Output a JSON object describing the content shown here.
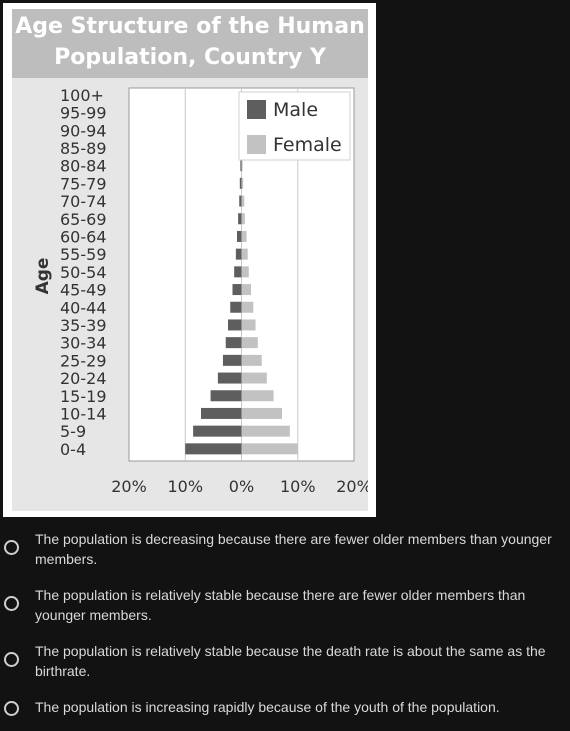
{
  "chart_data": {
    "type": "bar",
    "title": "Age Structure of the Human Population, Country Y",
    "title_lines": [
      "Age Structure of the Human",
      "Population, Country Y"
    ],
    "ylabel": "Age",
    "categories": [
      "100+",
      "95-99",
      "90-94",
      "85-89",
      "80-84",
      "75-79",
      "70-74",
      "65-69",
      "60-64",
      "55-59",
      "50-54",
      "45-49",
      "40-44",
      "35-39",
      "30-34",
      "25-29",
      "20-24",
      "15-19",
      "10-14",
      "5-9",
      "0-4"
    ],
    "series": [
      {
        "name": "Male",
        "color": "#5e5e5e",
        "values": [
          0,
          0,
          0,
          0,
          0.2,
          0.3,
          0.4,
          0.6,
          0.8,
          1.0,
          1.3,
          1.6,
          2.0,
          2.4,
          2.8,
          3.3,
          4.2,
          5.5,
          7.2,
          8.6,
          10.0
        ]
      },
      {
        "name": "Female",
        "color": "#c2c2c2",
        "values": [
          0,
          0,
          0,
          0,
          0.2,
          0.3,
          0.5,
          0.6,
          0.9,
          1.1,
          1.3,
          1.7,
          2.1,
          2.5,
          2.9,
          3.6,
          4.5,
          5.7,
          7.2,
          8.6,
          10.0
        ]
      }
    ],
    "xlim": [
      -20,
      20
    ],
    "xticks": [
      -20,
      -10,
      0,
      10,
      20
    ],
    "xtick_labels": [
      "20%",
      "10%",
      "0%",
      "10%",
      "20%"
    ],
    "grid": "vertical",
    "legend": "top-right"
  },
  "question": {
    "options": [
      {
        "text": "The population is decreasing because there are fewer older members than younger members."
      },
      {
        "text": "The population is relatively stable because there are fewer older members than younger members."
      },
      {
        "text": "The population is relatively stable because the death rate is about the same as the birthrate."
      },
      {
        "text": "The population is increasing rapidly because of the youth of the population."
      }
    ]
  }
}
